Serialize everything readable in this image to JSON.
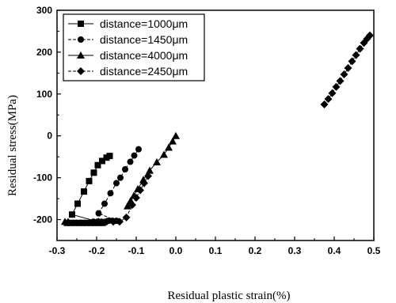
{
  "chart_data": {
    "type": "scatter",
    "title": "",
    "xlabel": "Residual plastic strain(%)",
    "ylabel": "Residual stress(MPa)",
    "xlim": [
      -0.3,
      0.5
    ],
    "ylim": [
      -250,
      300
    ],
    "xticks": [
      -0.3,
      -0.2,
      -0.1,
      0.0,
      0.1,
      0.2,
      0.3,
      0.4,
      0.5
    ],
    "yticks": [
      -200,
      -100,
      0,
      100,
      200,
      300
    ],
    "xtick_labels": [
      "-0.3",
      "-0.2",
      "-0.1",
      "0.0",
      "0.1",
      "0.2",
      "0.3",
      "0.4",
      "0.5"
    ],
    "ytick_labels": [
      "-200",
      "-100",
      "0",
      "100",
      "200",
      "300"
    ],
    "grid": false,
    "legend_position": "top-left",
    "series": [
      {
        "name": "distance=1000μm",
        "marker": "square",
        "line": "solid",
        "points": [
          [
            -0.275,
            -208
          ],
          [
            -0.265,
            -208
          ],
          [
            -0.255,
            -208
          ],
          [
            -0.245,
            -208
          ],
          [
            -0.235,
            -208
          ],
          [
            -0.225,
            -208
          ],
          [
            -0.215,
            -208
          ],
          [
            -0.205,
            -208
          ],
          [
            -0.195,
            -208
          ],
          [
            -0.185,
            -208
          ],
          [
            -0.262,
            -188
          ],
          [
            -0.248,
            -162
          ],
          [
            -0.232,
            -133
          ],
          [
            -0.219,
            -108
          ],
          [
            -0.207,
            -88
          ],
          [
            -0.197,
            -70
          ],
          [
            -0.186,
            -60
          ],
          [
            -0.175,
            -52
          ],
          [
            -0.167,
            -48
          ]
        ]
      },
      {
        "name": "distance=1450μm",
        "marker": "circle",
        "line": "dash",
        "points": [
          [
            -0.208,
            -205
          ],
          [
            -0.198,
            -205
          ],
          [
            -0.188,
            -205
          ],
          [
            -0.178,
            -205
          ],
          [
            -0.17,
            -203
          ],
          [
            -0.16,
            -203
          ],
          [
            -0.15,
            -203
          ],
          [
            -0.195,
            -185
          ],
          [
            -0.18,
            -162
          ],
          [
            -0.165,
            -137
          ],
          [
            -0.15,
            -113
          ],
          [
            -0.14,
            -100
          ],
          [
            -0.128,
            -80
          ],
          [
            -0.115,
            -62
          ],
          [
            -0.105,
            -47
          ],
          [
            -0.094,
            -32
          ]
        ]
      },
      {
        "name": "distance=4000μm",
        "marker": "triangle",
        "line": "solid",
        "points": [
          [
            -0.28,
            -205
          ],
          [
            -0.272,
            -205
          ],
          [
            -0.122,
            -168
          ],
          [
            -0.114,
            -155
          ],
          [
            -0.106,
            -143
          ],
          [
            -0.096,
            -127
          ],
          [
            -0.082,
            -105
          ],
          [
            -0.066,
            -83
          ],
          [
            -0.048,
            -63
          ],
          [
            -0.03,
            -45
          ],
          [
            -0.018,
            -28
          ],
          [
            -0.008,
            -13
          ],
          [
            0.0,
            0
          ]
        ]
      },
      {
        "name": "distance=2450μm",
        "marker": "diamond",
        "line": "dash",
        "points": [
          [
            -0.195,
            -205
          ],
          [
            -0.175,
            -205
          ],
          [
            -0.158,
            -205
          ],
          [
            -0.142,
            -205
          ],
          [
            -0.125,
            -195
          ],
          [
            -0.11,
            -165
          ],
          [
            -0.1,
            -148
          ],
          [
            -0.09,
            -130
          ],
          [
            -0.08,
            -113
          ],
          [
            -0.07,
            -96
          ],
          [
            0.375,
            75
          ],
          [
            0.385,
            88
          ],
          [
            0.395,
            102
          ],
          [
            0.405,
            117
          ],
          [
            0.415,
            131
          ],
          [
            0.425,
            147
          ],
          [
            0.435,
            162
          ],
          [
            0.445,
            178
          ],
          [
            0.455,
            193
          ],
          [
            0.465,
            208
          ],
          [
            0.475,
            222
          ],
          [
            0.483,
            232
          ],
          [
            0.49,
            240
          ]
        ]
      }
    ]
  }
}
